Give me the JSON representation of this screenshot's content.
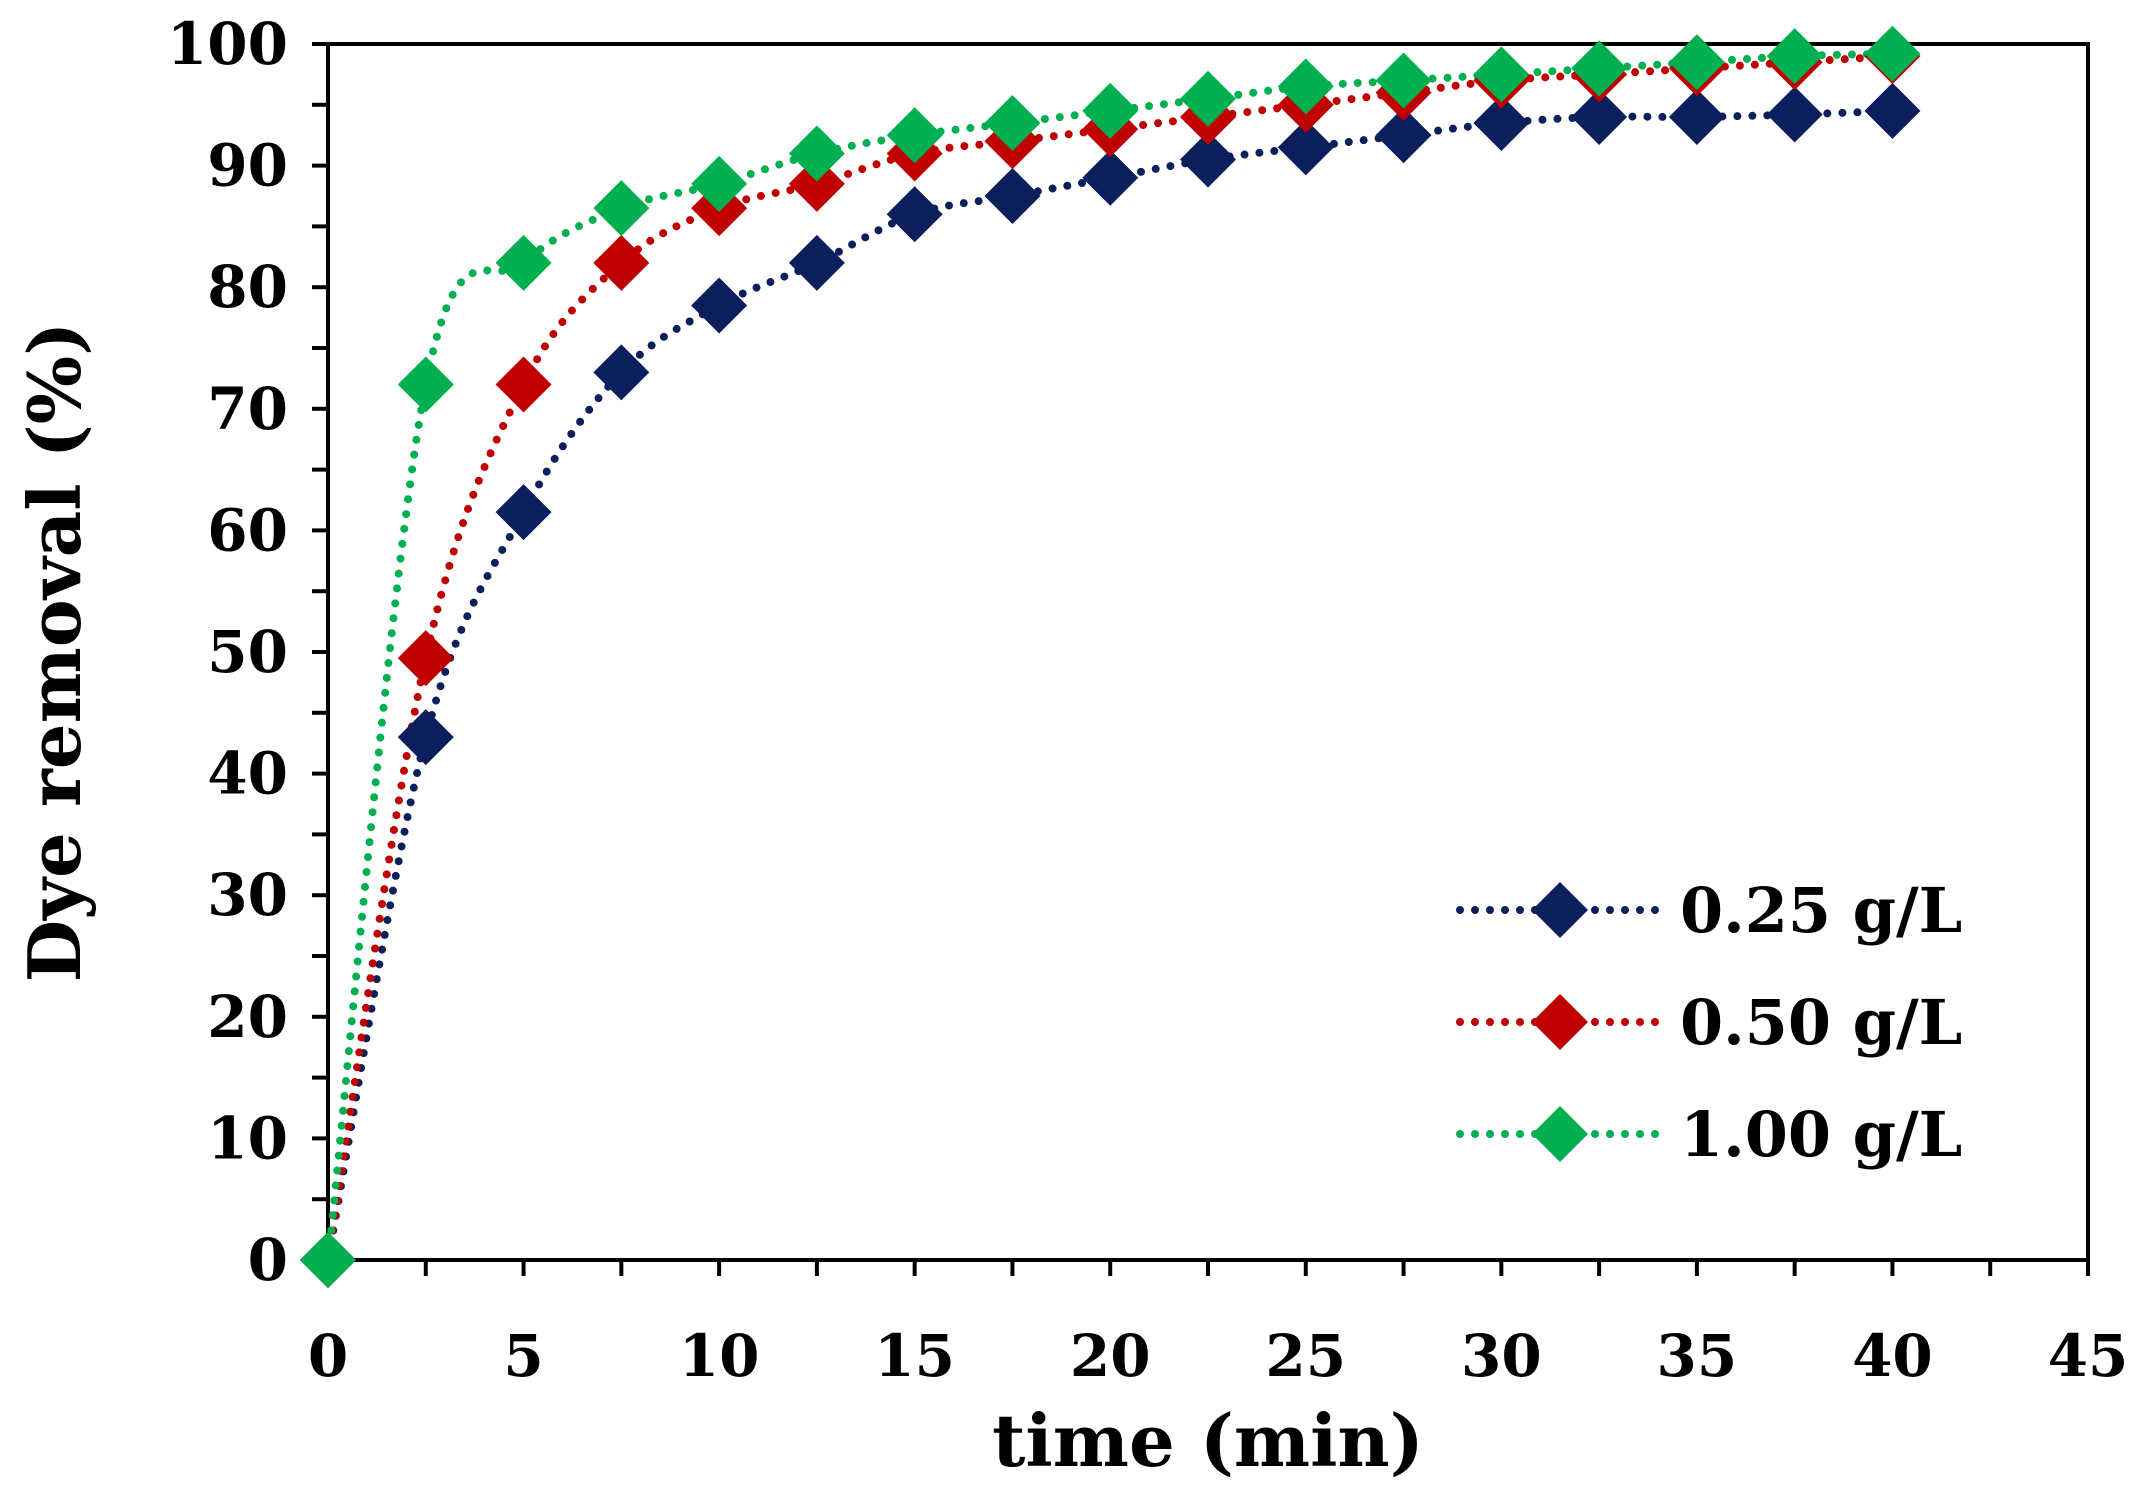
{
  "chart_data": {
    "type": "line",
    "xlabel": "time (min)",
    "ylabel": "Dye removal (%)",
    "xlim": [
      0,
      45
    ],
    "ylim": [
      0,
      100
    ],
    "x_ticks": [
      0,
      5,
      10,
      15,
      20,
      25,
      30,
      35,
      40,
      45
    ],
    "y_ticks": [
      0,
      10,
      20,
      30,
      40,
      50,
      60,
      70,
      80,
      90,
      100
    ],
    "grid": false,
    "legend_position": "bottom-right",
    "line_style": "dotted",
    "marker": "diamond",
    "x": [
      0,
      2.5,
      5,
      7.5,
      10,
      12.5,
      15,
      17.5,
      20,
      22.5,
      25,
      27.5,
      30,
      32.5,
      35,
      37.5,
      40
    ],
    "series": [
      {
        "name": "0.25 g/L",
        "color": "#0b1f5c",
        "values": [
          0,
          43,
          61.5,
          73,
          78.5,
          82,
          86,
          87.5,
          89,
          90.5,
          91.5,
          92.5,
          93.5,
          94,
          94,
          94.2,
          94.5
        ]
      },
      {
        "name": "0.50 g/L",
        "color": "#c00000",
        "values": [
          0,
          49.5,
          72,
          82,
          86.5,
          88.5,
          91,
          92,
          93,
          94,
          95,
          96,
          97,
          97.5,
          98,
          98.5,
          99
        ]
      },
      {
        "name": "1.00 g/L",
        "color": "#00b050",
        "values": [
          0,
          72,
          82,
          86.5,
          88.5,
          91,
          92.5,
          93.5,
          94.5,
          95.5,
          96.5,
          97,
          97.5,
          98,
          98.5,
          99,
          99.2
        ]
      }
    ]
  }
}
